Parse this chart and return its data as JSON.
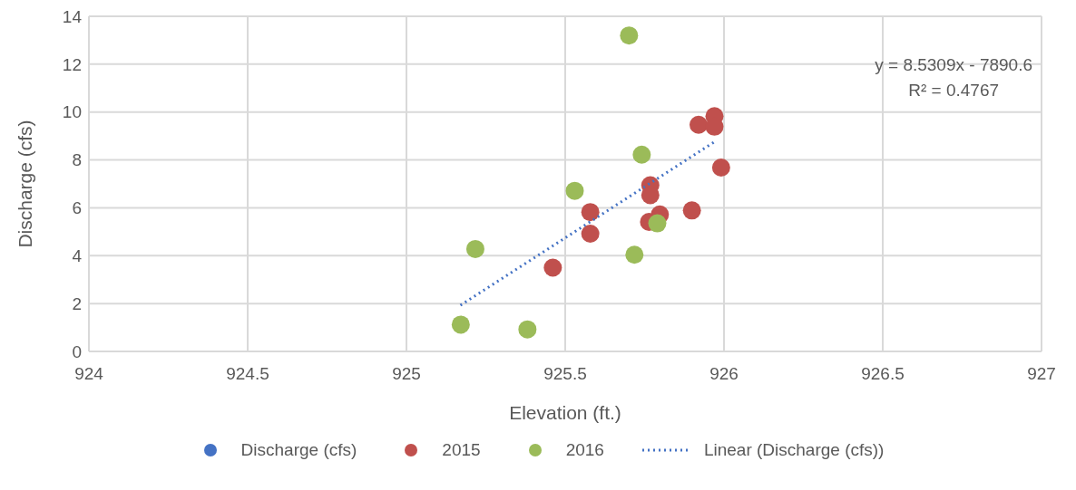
{
  "chart_data": {
    "type": "scatter",
    "xlabel": "Elevation (ft.)",
    "ylabel": "Discharge (cfs)",
    "xlim": [
      924,
      927
    ],
    "xticks": [
      924,
      924.5,
      925,
      925.5,
      926,
      926.5,
      927
    ],
    "ylim": [
      0,
      14
    ],
    "yticks": [
      0,
      2,
      4,
      6,
      8,
      10,
      12,
      14
    ],
    "grid": true,
    "legend": "bottom",
    "marker": "circle",
    "annotations": [
      "y = 8.5309x - 7890.6",
      "R² = 0.4767"
    ],
    "series": [
      {
        "name": "Discharge (cfs)",
        "color": "#4472c4"
      },
      {
        "name": "2015",
        "color": "#c0504d",
        "x": [
          925.97,
          925.92,
          925.97,
          925.991,
          925.768,
          925.768,
          925.579,
          925.579,
          925.899,
          925.798,
          925.764,
          925.461
        ],
        "values": [
          9.83,
          9.47,
          9.39,
          7.68,
          6.94,
          6.53,
          5.82,
          4.92,
          5.89,
          5.72,
          5.41,
          3.5
        ]
      },
      {
        "name": "2016",
        "color": "#9bbb59",
        "x": [
          925.701,
          925.741,
          925.53,
          925.217,
          925.718,
          925.79,
          925.171,
          925.381
        ],
        "values": [
          13.2,
          8.22,
          6.71,
          4.28,
          4.04,
          5.35,
          1.12,
          0.92
        ]
      },
      {
        "name": "Linear (Discharge (cfs))",
        "type": "line",
        "line_style": "dotted",
        "marker": "none",
        "color": "#4472c4",
        "x": [
          925.17,
          925.974
        ],
        "values": [
          1.93,
          8.79
        ]
      }
    ]
  }
}
